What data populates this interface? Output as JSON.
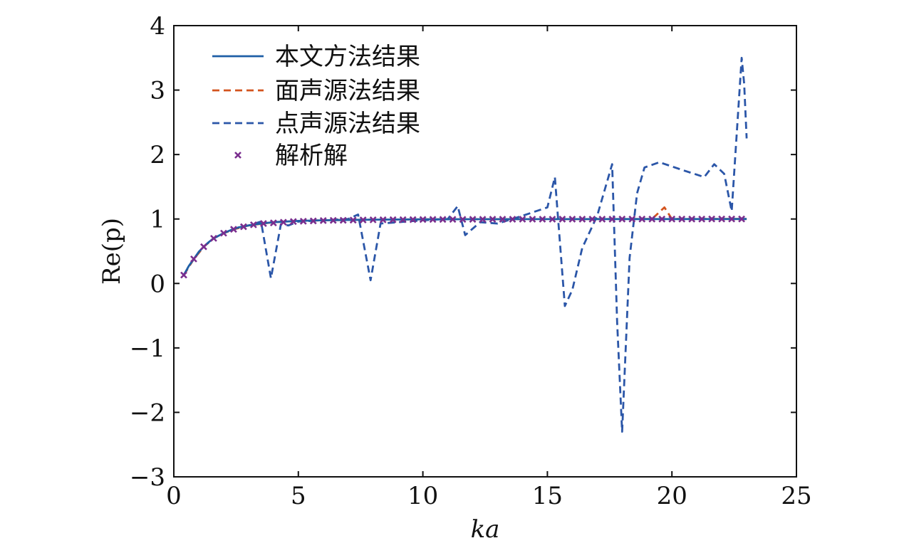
{
  "chart_data": {
    "type": "line",
    "title": "",
    "xlabel": "ka",
    "ylabel": "Re(p)",
    "xlim": [
      0,
      25
    ],
    "ylim": [
      -3,
      4
    ],
    "xticks": [
      0,
      5,
      10,
      15,
      20,
      25
    ],
    "yticks": [
      -3,
      -2,
      -1,
      0,
      1,
      2,
      3,
      4
    ],
    "xtick_labels": [
      "0",
      "5",
      "10",
      "15",
      "20",
      "25"
    ],
    "ytick_labels": [
      "−3",
      "−2",
      "−1",
      "0",
      "1",
      "2",
      "3",
      "4"
    ],
    "grid": false,
    "legend_position": "top-left",
    "colors": {
      "solid": "#1f5fa6",
      "surface": "#d4541e",
      "point": "#2b56a8",
      "analytic": "#7a2e8e",
      "axis": "#111111"
    },
    "series": [
      {
        "name": "本文方法结果",
        "style": "solid",
        "x": [
          0.4,
          0.6,
          0.8,
          1.0,
          1.2,
          1.4,
          1.6,
          1.8,
          2.0,
          2.3,
          2.6,
          3.0,
          3.5,
          4.0,
          5.0,
          6.0,
          8.0,
          10.0,
          12.0,
          15.0,
          18.0,
          20.0,
          23.0
        ],
        "y": [
          0.13,
          0.27,
          0.38,
          0.49,
          0.57,
          0.64,
          0.7,
          0.74,
          0.78,
          0.83,
          0.87,
          0.9,
          0.93,
          0.95,
          0.97,
          0.98,
          0.99,
          0.995,
          0.997,
          0.998,
          0.999,
          0.999,
          1.0
        ]
      },
      {
        "name": "面声源法结果",
        "style": "dashed",
        "x": [
          0.4,
          0.8,
          1.2,
          1.6,
          2.0,
          2.5,
          3.0,
          4.0,
          5.0,
          6.0,
          8.0,
          10.0,
          12.0,
          15.0,
          18.0,
          19.2,
          19.7,
          20.0,
          21.0,
          23.0
        ],
        "y": [
          0.13,
          0.38,
          0.57,
          0.7,
          0.78,
          0.85,
          0.9,
          0.95,
          0.97,
          0.98,
          0.99,
          0.995,
          0.997,
          0.998,
          0.999,
          1.0,
          1.18,
          1.0,
          1.0,
          1.0
        ]
      },
      {
        "name": "点声源法结果",
        "style": "dashed",
        "x": [
          0.4,
          0.8,
          1.2,
          1.6,
          2.0,
          2.5,
          3.0,
          3.5,
          3.9,
          4.3,
          4.6,
          5.0,
          6.0,
          7.0,
          7.4,
          7.9,
          8.3,
          9.0,
          10.0,
          11.0,
          11.4,
          11.7,
          12.3,
          13.0,
          14.0,
          15.0,
          15.3,
          15.7,
          16.0,
          16.4,
          17.0,
          17.6,
          17.8,
          18.0,
          18.3,
          18.6,
          18.9,
          19.5,
          20.5,
          21.3,
          21.7,
          22.1,
          22.4,
          22.8,
          22.9,
          23.0
        ],
        "y": [
          0.13,
          0.38,
          0.57,
          0.7,
          0.78,
          0.85,
          0.9,
          0.96,
          0.08,
          0.92,
          0.9,
          0.96,
          0.98,
          1.0,
          1.07,
          0.05,
          0.93,
          0.95,
          0.98,
          1.0,
          1.2,
          0.75,
          0.95,
          0.93,
          1.05,
          1.18,
          1.65,
          -0.35,
          -0.1,
          0.55,
          1.05,
          1.85,
          -0.6,
          -2.3,
          0.4,
          1.4,
          1.8,
          1.88,
          1.75,
          1.65,
          1.85,
          1.7,
          1.12,
          3.5,
          3.1,
          2.25
        ]
      },
      {
        "name": "解析解",
        "style": "marker-x",
        "x": [
          0.4,
          0.8,
          1.2,
          1.6,
          2.0,
          2.4,
          2.8,
          3.2,
          3.6,
          4.0,
          4.4,
          4.8,
          5.2,
          5.6,
          6.0,
          6.4,
          6.8,
          7.2,
          7.6,
          8.0,
          8.4,
          8.8,
          9.2,
          9.6,
          10.0,
          10.4,
          10.8,
          11.2,
          11.6,
          12.0,
          12.4,
          12.8,
          13.2,
          13.6,
          14.0,
          14.4,
          14.8,
          15.2,
          15.6,
          16.0,
          16.4,
          16.8,
          17.2,
          17.6,
          18.0,
          18.4,
          18.8,
          19.2,
          19.6,
          20.0,
          20.4,
          20.8,
          21.2,
          21.6,
          22.0,
          22.4,
          22.8
        ],
        "y": [
          0.13,
          0.38,
          0.57,
          0.7,
          0.78,
          0.84,
          0.88,
          0.91,
          0.93,
          0.94,
          0.95,
          0.96,
          0.965,
          0.97,
          0.975,
          0.978,
          0.98,
          0.982,
          0.985,
          0.987,
          0.988,
          0.989,
          0.99,
          0.991,
          0.992,
          0.993,
          0.993,
          0.994,
          0.994,
          0.995,
          0.995,
          0.996,
          0.996,
          0.996,
          0.997,
          0.997,
          0.997,
          0.997,
          0.998,
          0.998,
          0.998,
          0.998,
          0.998,
          0.998,
          0.999,
          0.999,
          0.999,
          0.999,
          0.999,
          0.999,
          0.999,
          0.999,
          0.999,
          1.0,
          1.0,
          1.0,
          1.0
        ]
      }
    ]
  }
}
